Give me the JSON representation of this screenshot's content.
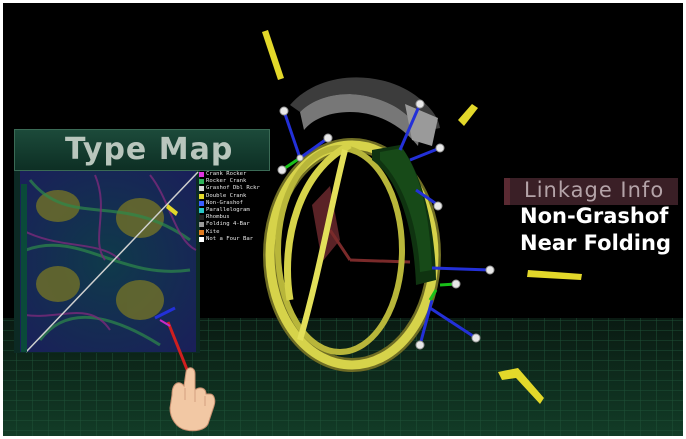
{
  "type_map": {
    "title": "Type Map",
    "legend": [
      {
        "label": "Crank Rocker",
        "color": "#e033e0"
      },
      {
        "label": "Rocker Crank",
        "color": "#2fb35a"
      },
      {
        "label": "Grashof Dbl Rckr",
        "color": "#d8d8d8"
      },
      {
        "label": "Double Crank",
        "color": "#e3d82a"
      },
      {
        "label": "Non-Grashof",
        "color": "#3a5cff"
      },
      {
        "label": "Parallelogram",
        "color": "#2ac6c6"
      },
      {
        "label": "Rhombus",
        "color": "#222222"
      },
      {
        "label": "Folding 4-Bar",
        "color": "#9a9a9a"
      },
      {
        "label": "Kite",
        "color": "#e07a1f"
      },
      {
        "label": "Not a Four Bar",
        "color": "#ffffff"
      }
    ]
  },
  "linkage_info": {
    "title": "Linkage Info",
    "line1": "Non-Grashof",
    "line2": "Near Folding"
  },
  "colors": {
    "background": "#000000",
    "floor": "#0e2a1c",
    "ring": "#d6d34a",
    "crank": "#d6d34a",
    "coupler": "#7a7a7a",
    "green_link": "#153c16",
    "joint": "#e8e8e8",
    "axis_blue": "#2330d8",
    "axis_red": "#d01818",
    "axis_green": "#19c019"
  },
  "icons": [
    "hand-pointer-icon",
    "joint-marker-icon",
    "axis-indicator-icon"
  ]
}
